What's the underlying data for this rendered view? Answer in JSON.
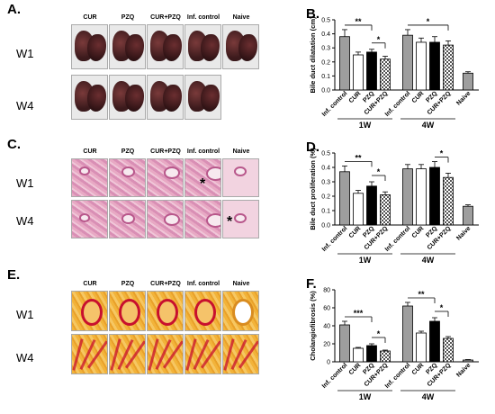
{
  "figure": {
    "panels": {
      "A": {
        "letter": "A.",
        "cols": [
          "CUR",
          "PZQ",
          "CUR+PZQ",
          "Inf. control",
          "Naive"
        ],
        "rows": [
          "W1",
          "W4"
        ]
      },
      "C": {
        "letter": "C.",
        "cols": [
          "CUR",
          "PZQ",
          "CUR+PZQ",
          "Inf. control",
          "Naive"
        ],
        "rows": [
          "W1",
          "W4"
        ],
        "marker": "*"
      },
      "E": {
        "letter": "E.",
        "cols": [
          "CUR",
          "PZQ",
          "CUR+PZQ",
          "Inf. control",
          "Naive"
        ],
        "rows": [
          "W1",
          "W4"
        ]
      }
    }
  },
  "chart_data": [
    {
      "id": "B",
      "letter": "B.",
      "type": "bar",
      "ylabel": "Bile duct dilatation (cm)",
      "ylim": [
        0,
        0.5
      ],
      "yticks": [
        "0.0",
        "0.1",
        "0.2",
        "0.3",
        "0.4",
        "0.5"
      ],
      "categories": [
        "Inf. control",
        "CUR",
        "PZQ",
        "CUR+PZQ",
        "Inf. control",
        "CUR",
        "PZQ",
        "CUR+PZQ",
        "Naive"
      ],
      "values": [
        0.38,
        0.25,
        0.27,
        0.22,
        0.39,
        0.34,
        0.34,
        0.32,
        0.12
      ],
      "errors": [
        0.05,
        0.02,
        0.02,
        0.02,
        0.04,
        0.03,
        0.04,
        0.03,
        0.01
      ],
      "groups": [
        "1W",
        "4W"
      ],
      "significance": [
        {
          "from": 0,
          "to": 2,
          "label": "**"
        },
        {
          "from": 2,
          "to": 3,
          "label": "*"
        },
        {
          "from": 4,
          "to": 7,
          "label": "*"
        }
      ]
    },
    {
      "id": "D",
      "letter": "D.",
      "type": "bar",
      "ylabel": "Bile duct proliferation (%)",
      "ylim": [
        0,
        0.5
      ],
      "yticks": [
        "0.0",
        "0.1",
        "0.2",
        "0.3",
        "0.4",
        "0.5"
      ],
      "categories": [
        "Inf. control",
        "CUR",
        "PZQ",
        "CUR+PZQ",
        "Inf. control",
        "CUR",
        "PZQ",
        "CUR+PZQ",
        "Naive"
      ],
      "values": [
        0.37,
        0.22,
        0.27,
        0.21,
        0.39,
        0.39,
        0.4,
        0.33,
        0.13
      ],
      "errors": [
        0.04,
        0.02,
        0.03,
        0.02,
        0.03,
        0.03,
        0.04,
        0.03,
        0.01
      ],
      "groups": [
        "1W",
        "4W"
      ],
      "significance": [
        {
          "from": 0,
          "to": 2,
          "label": "**"
        },
        {
          "from": 2,
          "to": 3,
          "label": "*"
        },
        {
          "from": 6,
          "to": 7,
          "label": "*"
        }
      ]
    },
    {
      "id": "F",
      "letter": "F.",
      "type": "bar",
      "ylabel": "Cholangiofibrosis (%)",
      "ylim": [
        0,
        80
      ],
      "yticks": [
        "0",
        "20",
        "40",
        "60",
        "80"
      ],
      "categories": [
        "Inf. control",
        "CUR",
        "PZQ",
        "CUR+PZQ",
        "Inf. control",
        "CUR",
        "PZQ",
        "CUR+PZQ",
        "Naive"
      ],
      "values": [
        41,
        15,
        18,
        12,
        62,
        32,
        45,
        26,
        2
      ],
      "errors": [
        4,
        1,
        2,
        1,
        4,
        2,
        4,
        2,
        0.5
      ],
      "groups": [
        "1W",
        "4W"
      ],
      "significance": [
        {
          "from": 0,
          "to": 2,
          "label": "***"
        },
        {
          "from": 2,
          "to": 3,
          "label": "*"
        },
        {
          "from": 4,
          "to": 6,
          "label": "**"
        },
        {
          "from": 6,
          "to": 7,
          "label": "*"
        }
      ]
    }
  ]
}
